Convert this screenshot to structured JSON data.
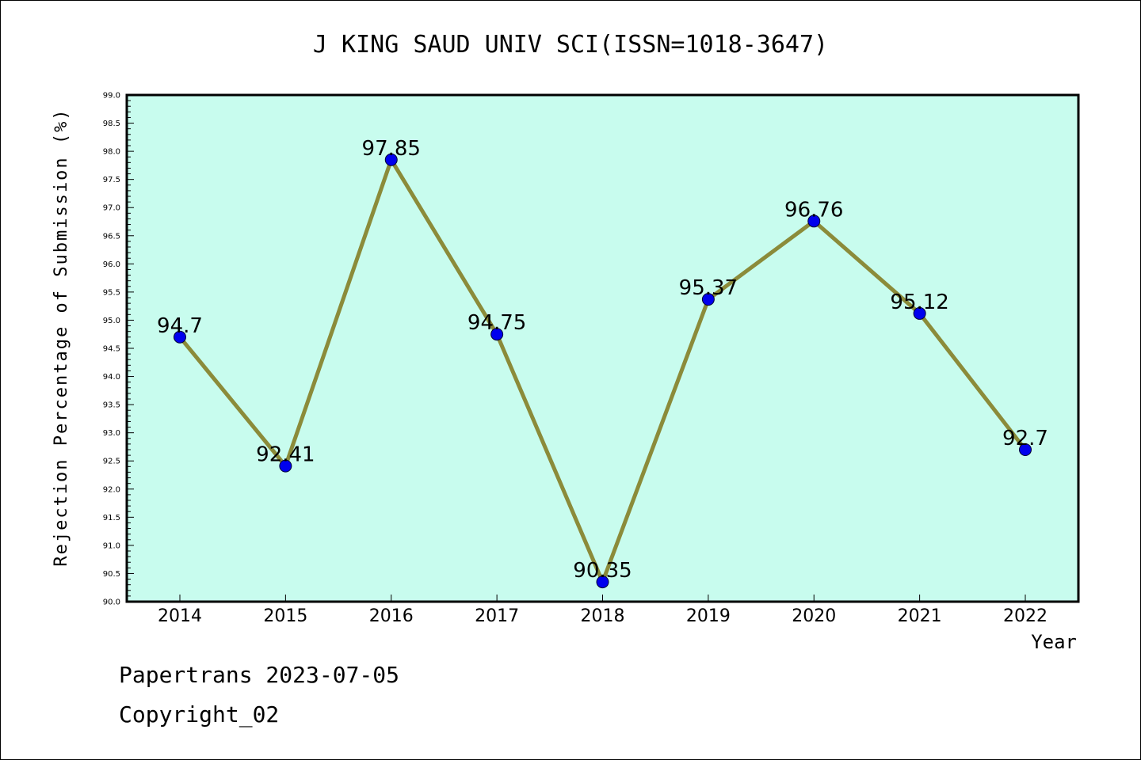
{
  "chart_data": {
    "type": "line",
    "title": "J KING SAUD UNIV SCI(ISSN=1018-3647)",
    "xlabel": "Year",
    "ylabel": "Rejection Percentage of Submission (%)",
    "categories": [
      "2014",
      "2015",
      "2016",
      "2017",
      "2018",
      "2019",
      "2020",
      "2021",
      "2022"
    ],
    "series": [
      {
        "values": [
          94.7,
          92.41,
          97.85,
          94.75,
          90.35,
          95.37,
          96.76,
          95.12,
          92.7
        ],
        "labels": [
          "94.7",
          "92.41",
          "97.85",
          "94.75",
          "90.35",
          "95.37",
          "96.76",
          "95.12",
          "92.7"
        ]
      }
    ],
    "ylim": [
      90.0,
      99.0
    ],
    "yticks": [
      "90.0",
      "90.5",
      "91.0",
      "91.5",
      "92.0",
      "92.5",
      "93.0",
      "93.5",
      "94.0",
      "94.5",
      "95.0",
      "95.5",
      "96.0",
      "96.5",
      "97.0",
      "97.5",
      "98.0",
      "98.5",
      "99.0"
    ],
    "grid": false,
    "legend": "none",
    "colors": {
      "plot_background": "#c8fcee",
      "line": "#8b8b3a",
      "marker": "#0000ee",
      "axis": "#000000"
    }
  },
  "footer": {
    "line1": "Papertrans 2023-07-05",
    "line2": "Copyright_02"
  }
}
